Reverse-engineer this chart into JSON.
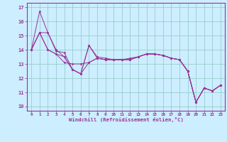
{
  "xlabel": "Windchill (Refroidissement éolien,°C)",
  "background_color": "#cceeff",
  "line_color": "#993399",
  "grid_color": "#99cccc",
  "xlim": [
    -0.5,
    23.5
  ],
  "ylim": [
    9.7,
    17.3
  ],
  "xticks": [
    0,
    1,
    2,
    3,
    4,
    5,
    6,
    7,
    8,
    9,
    10,
    11,
    12,
    13,
    14,
    15,
    16,
    17,
    18,
    19,
    20,
    21,
    22,
    23
  ],
  "yticks": [
    10,
    11,
    12,
    13,
    14,
    15,
    16,
    17
  ],
  "series": [
    [
      14.0,
      16.7,
      15.2,
      13.9,
      13.8,
      12.6,
      12.3,
      14.3,
      13.5,
      13.4,
      13.3,
      13.3,
      13.3,
      13.5,
      13.7,
      13.7,
      13.6,
      13.4,
      13.3,
      12.5,
      10.3,
      11.3,
      11.1,
      11.5
    ],
    [
      14.0,
      15.2,
      15.2,
      14.0,
      13.5,
      12.6,
      12.3,
      14.3,
      13.4,
      13.3,
      13.3,
      13.3,
      13.4,
      13.5,
      13.7,
      13.7,
      13.6,
      13.4,
      13.3,
      12.5,
      10.3,
      11.3,
      11.1,
      11.5
    ],
    [
      14.0,
      15.2,
      14.0,
      13.7,
      13.1,
      13.0,
      13.0,
      13.1,
      13.4,
      13.3,
      13.3,
      13.3,
      13.3,
      13.5,
      13.7,
      13.7,
      13.6,
      13.4,
      13.3,
      12.5,
      10.3,
      11.3,
      11.1,
      11.5
    ],
    [
      14.0,
      15.2,
      14.0,
      13.7,
      13.5,
      12.6,
      12.3,
      13.1,
      13.4,
      13.3,
      13.3,
      13.3,
      13.3,
      13.5,
      13.7,
      13.7,
      13.6,
      13.4,
      13.3,
      12.5,
      10.3,
      11.3,
      11.1,
      11.5
    ]
  ]
}
